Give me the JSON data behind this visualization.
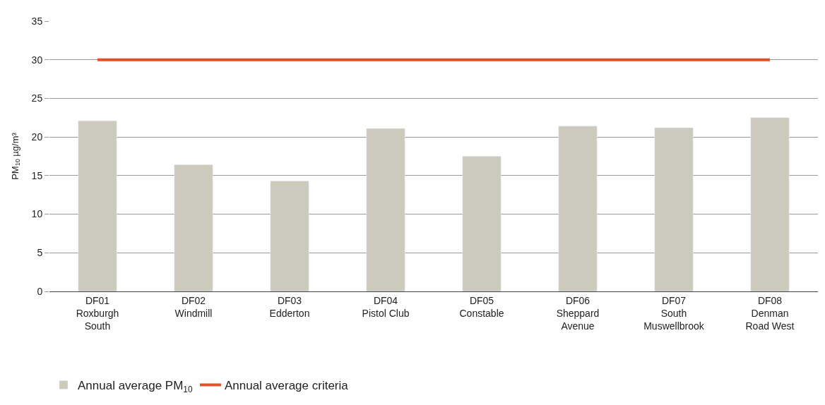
{
  "chart_data": {
    "type": "bar",
    "ylabel": "PM$_{10}$ µg/m³",
    "categories": [
      "DF01\nRoxburgh\nSouth",
      "DF02\nWindmill",
      "DF03\nEdderton",
      "DF04\nPistol Club",
      "DF05\nConstable",
      "DF06\nSheppard\nAvenue",
      "DF07\nSouth\nMuswellbrook",
      "DF08\nDenman\nRoad West"
    ],
    "series": [
      {
        "name": "Annual average PM$_{10}$",
        "color": "#cccabd",
        "values": [
          22.1,
          16.4,
          14.3,
          21.1,
          17.5,
          21.4,
          21.2,
          22.5
        ]
      },
      {
        "name": "Annual average criteria",
        "color": "#e0512a",
        "type": "line",
        "values": [
          30,
          30,
          30,
          30,
          30,
          30,
          30,
          30
        ]
      }
    ],
    "ylim": [
      0,
      35
    ],
    "yticks": [
      0,
      5,
      10,
      15,
      20,
      25,
      30,
      35
    ],
    "grid": "y",
    "legend": "bottom left"
  }
}
